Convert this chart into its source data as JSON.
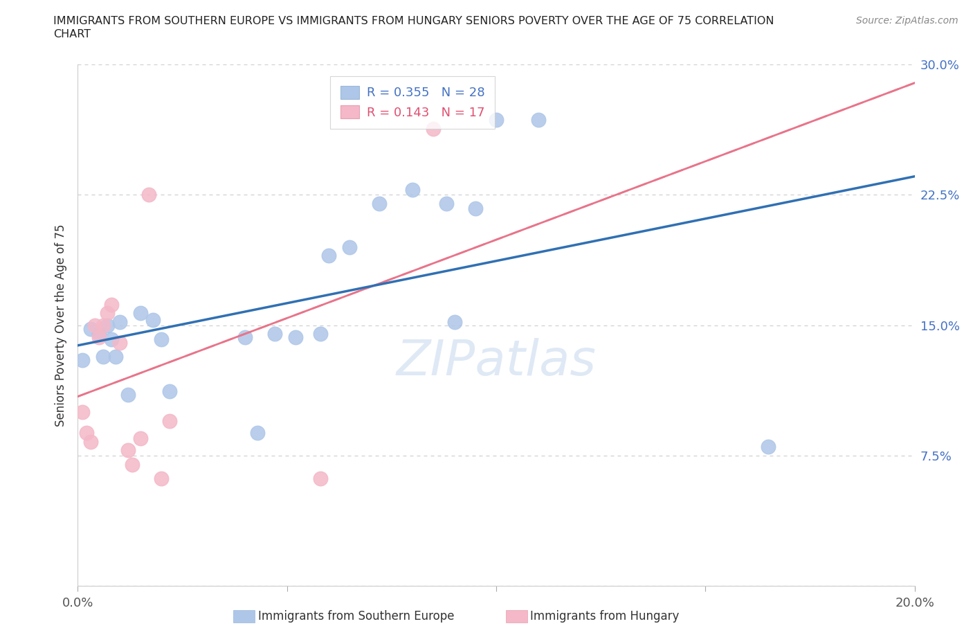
{
  "title_line1": "IMMIGRANTS FROM SOUTHERN EUROPE VS IMMIGRANTS FROM HUNGARY SENIORS POVERTY OVER THE AGE OF 75 CORRELATION",
  "title_line2": "CHART",
  "source": "Source: ZipAtlas.com",
  "ylabel_label": "Seniors Poverty Over the Age of 75",
  "legend_label1": "Immigrants from Southern Europe",
  "legend_label2": "Immigrants from Hungary",
  "R1": 0.355,
  "N1": 28,
  "R2": 0.143,
  "N2": 17,
  "xlim": [
    0.0,
    0.2
  ],
  "ylim": [
    0.0,
    0.3
  ],
  "xticks": [
    0.0,
    0.05,
    0.1,
    0.15,
    0.2
  ],
  "yticks": [
    0.0,
    0.075,
    0.15,
    0.225,
    0.3
  ],
  "xticklabels": [
    "0.0%",
    "",
    "",
    "",
    "20.0%"
  ],
  "yticklabels_right": [
    "",
    "7.5%",
    "15.0%",
    "22.5%",
    "30.0%"
  ],
  "color_blue": "#aec6e8",
  "color_pink": "#f4b8c8",
  "trendline_blue": "#3070b3",
  "trendline_pink": "#e8748a",
  "trendline_pink_dash": "#cccccc",
  "blue_points_x": [
    0.001,
    0.003,
    0.005,
    0.006,
    0.007,
    0.008,
    0.009,
    0.01,
    0.012,
    0.015,
    0.018,
    0.02,
    0.022,
    0.04,
    0.043,
    0.047,
    0.052,
    0.058,
    0.06,
    0.065,
    0.072,
    0.08,
    0.088,
    0.09,
    0.095,
    0.1,
    0.11,
    0.165
  ],
  "blue_points_y": [
    0.13,
    0.148,
    0.145,
    0.132,
    0.15,
    0.142,
    0.132,
    0.152,
    0.11,
    0.157,
    0.153,
    0.142,
    0.112,
    0.143,
    0.088,
    0.145,
    0.143,
    0.145,
    0.19,
    0.195,
    0.22,
    0.228,
    0.22,
    0.152,
    0.217,
    0.268,
    0.268,
    0.08
  ],
  "pink_points_x": [
    0.001,
    0.002,
    0.003,
    0.004,
    0.005,
    0.006,
    0.007,
    0.008,
    0.01,
    0.012,
    0.013,
    0.015,
    0.017,
    0.02,
    0.022,
    0.058,
    0.085
  ],
  "pink_points_y": [
    0.1,
    0.088,
    0.083,
    0.15,
    0.143,
    0.15,
    0.157,
    0.162,
    0.14,
    0.078,
    0.07,
    0.085,
    0.225,
    0.062,
    0.095,
    0.062,
    0.263
  ],
  "watermark": "ZIPatlas",
  "background_color": "#ffffff",
  "grid_color": "#d0d0d0"
}
